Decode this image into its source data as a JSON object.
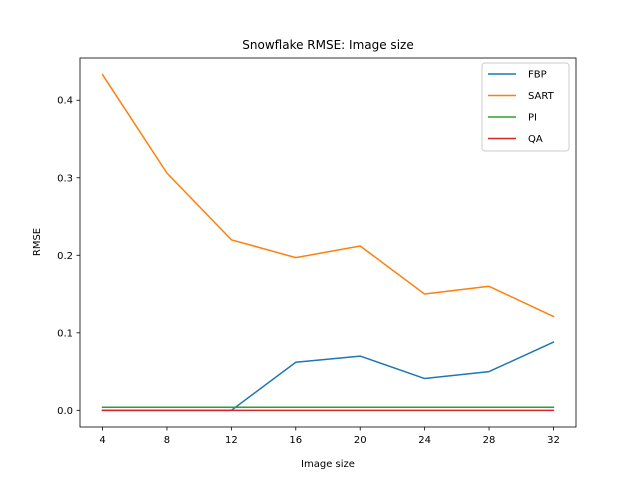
{
  "chart_data": {
    "type": "line",
    "title": "Snowflake RMSE: Image size",
    "xlabel": "Image size",
    "ylabel": "RMSE",
    "x": [
      4,
      8,
      12,
      16,
      20,
      24,
      28,
      32
    ],
    "xticks": [
      4,
      8,
      12,
      16,
      20,
      24,
      28,
      32
    ],
    "xticklabels": [
      "4",
      "8",
      "12",
      "16",
      "20",
      "24",
      "28",
      "32"
    ],
    "yticks": [
      0.0,
      0.1,
      0.2,
      0.3,
      0.4
    ],
    "yticklabels": [
      "0.0",
      "0.1",
      "0.2",
      "0.3",
      "0.4"
    ],
    "xlim": [
      2.6,
      33.4
    ],
    "ylim": [
      -0.0215,
      0.4545
    ],
    "grid": false,
    "legend_position": "top-right",
    "series": [
      {
        "name": "FBP",
        "color": "#1f77b4",
        "values": [
          0.0,
          0.0,
          0.0,
          0.062,
          0.07,
          0.041,
          0.05,
          0.088
        ]
      },
      {
        "name": "SART",
        "color": "#ff7f0e",
        "values": [
          0.433,
          0.306,
          0.22,
          0.197,
          0.212,
          0.15,
          0.16,
          0.121
        ]
      },
      {
        "name": "PI",
        "color": "#2ca02c",
        "values": [
          0.004,
          0.004,
          0.004,
          0.004,
          0.004,
          0.004,
          0.004,
          0.004
        ]
      },
      {
        "name": "QA",
        "color": "#d62728",
        "values": [
          0.0,
          0.0,
          0.0,
          0.0,
          0.0,
          0.0,
          0.0,
          0.0
        ]
      }
    ]
  }
}
